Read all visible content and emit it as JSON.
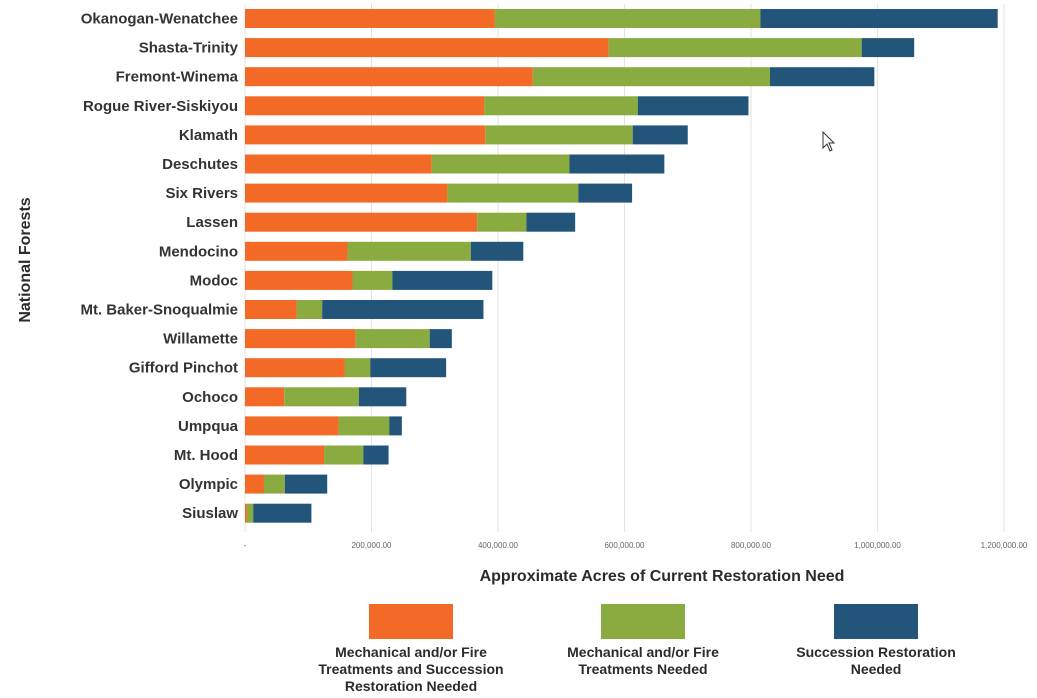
{
  "chart_data": {
    "type": "bar",
    "orientation": "horizontal",
    "stacked": true,
    "xlabel": "Approximate Acres of Current Restoration Need",
    "ylabel": "National Forests",
    "xlim": [
      0,
      1200000
    ],
    "x_ticks": [
      0,
      200000,
      400000,
      600000,
      800000,
      1000000,
      1200000
    ],
    "x_tick_labels": [
      "-",
      "200,000.00",
      "400,000.00",
      "600,000.00",
      "800,000.00",
      "1,000,000.00",
      "1,200,000.00"
    ],
    "grid": true,
    "legend_position": "bottom",
    "categories": [
      "Okanogan-Wenatchee",
      "Shasta-Trinity",
      "Fremont-Winema",
      "Rogue River-Siskiyou",
      "Klamath",
      "Deschutes",
      "Six Rivers",
      "Lassen",
      "Mendocino",
      "Modoc",
      "Mt. Baker-Snoqualmie",
      "Willamette",
      "Gifford Pinchot",
      "Ochoco",
      "Umpqua",
      "Mt. Hood",
      "Olympic",
      "Siuslaw"
    ],
    "series": [
      {
        "name": "Mechanical and/or Fire Treatments and Succession Restoration Needed",
        "color": "#f26a26",
        "values": [
          395000,
          575000,
          455000,
          378000,
          380000,
          295000,
          320000,
          367000,
          162000,
          170000,
          82000,
          175000,
          158000,
          62000,
          148000,
          125000,
          30000,
          3000
        ]
      },
      {
        "name": "Mechanical and/or Fire Treatments Needed",
        "color": "#8aab3f",
        "values": [
          420000,
          400000,
          375000,
          243000,
          233000,
          218000,
          207000,
          78000,
          195000,
          63000,
          40000,
          117000,
          40000,
          118000,
          80000,
          62000,
          33000,
          10000
        ]
      },
      {
        "name": "Succession Restoration Needed",
        "color": "#23557a",
        "values": [
          375000,
          83000,
          165000,
          175000,
          87000,
          150000,
          85000,
          77000,
          83000,
          158000,
          255000,
          35000,
          120000,
          75000,
          20000,
          40000,
          67000,
          92000
        ]
      }
    ]
  }
}
